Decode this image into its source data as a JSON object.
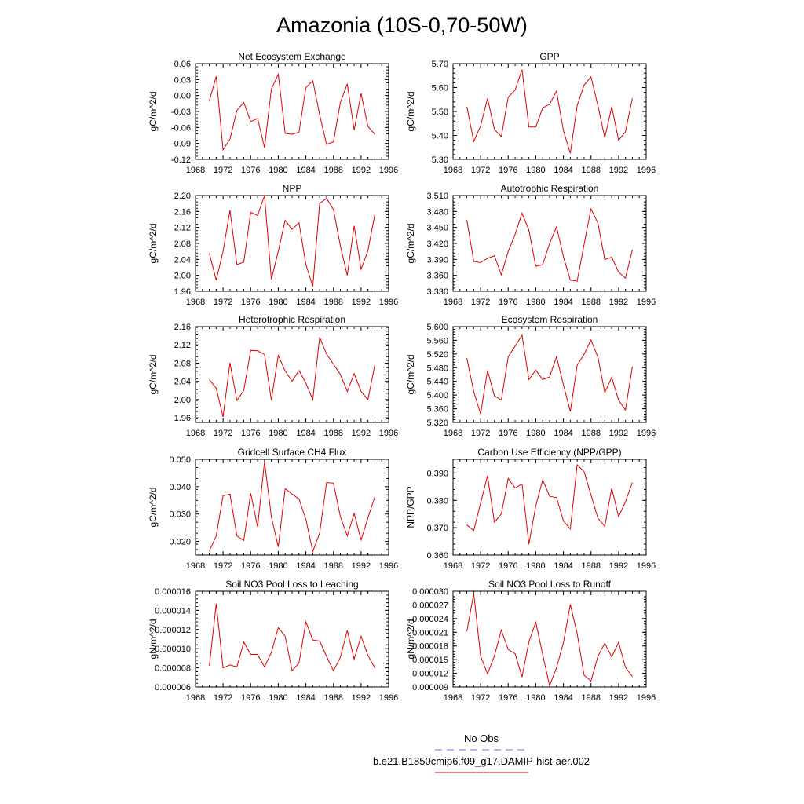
{
  "title": "Amazonia (10S-0,70-50W)",
  "legend": {
    "header": "No Obs",
    "obs_color": "#6e6ee6",
    "model_label": "b.e21.B1850cmip6.f09_g17.DAMIP-hist-aer.002",
    "model_color": "#e00000"
  },
  "years": [
    1970,
    1971,
    1972,
    1973,
    1974,
    1975,
    1976,
    1977,
    1978,
    1979,
    1980,
    1981,
    1982,
    1983,
    1984,
    1985,
    1986,
    1987,
    1988,
    1989,
    1990,
    1991,
    1992,
    1993,
    1994
  ],
  "x_ticks": [
    "1968",
    "1972",
    "1976",
    "1980",
    "1984",
    "1988",
    "1992",
    "1996"
  ],
  "chart_data": [
    {
      "type": "line",
      "title": "Net Ecosystem Exchange",
      "ylabel": "gC/m^2/d",
      "xlim": [
        1968,
        1996
      ],
      "ylim": [
        -0.12,
        0.06
      ],
      "yticks": [
        "0.06",
        "0.03",
        "0.00",
        "-0.03",
        "-0.06",
        "-0.09",
        "-0.12"
      ],
      "series": [
        {
          "values": [
            -0.01,
            0.036,
            -0.102,
            -0.082,
            -0.028,
            -0.013,
            -0.049,
            -0.043,
            -0.098,
            0.012,
            0.04,
            -0.071,
            -0.073,
            -0.069,
            0.015,
            0.028,
            -0.036,
            -0.092,
            -0.087,
            -0.013,
            0.022,
            -0.065,
            0.004,
            -0.058,
            -0.073
          ]
        }
      ]
    },
    {
      "type": "line",
      "title": "GPP",
      "ylabel": "gC/m^2/d",
      "xlim": [
        1968,
        1996
      ],
      "ylim": [
        5.3,
        5.7
      ],
      "yticks": [
        "5.70",
        "5.60",
        "5.50",
        "5.40",
        "5.30"
      ],
      "series": [
        {
          "values": [
            5.52,
            5.375,
            5.44,
            5.555,
            5.425,
            5.395,
            5.56,
            5.59,
            5.675,
            5.435,
            5.435,
            5.515,
            5.53,
            5.585,
            5.42,
            5.325,
            5.525,
            5.61,
            5.645,
            5.525,
            5.39,
            5.52,
            5.38,
            5.415,
            5.555
          ]
        }
      ]
    },
    {
      "type": "line",
      "title": "NPP",
      "ylabel": "gC/m^2/d",
      "xlim": [
        1968,
        1996
      ],
      "ylim": [
        1.96,
        2.2
      ],
      "yticks": [
        "2.20",
        "2.16",
        "2.12",
        "2.08",
        "2.04",
        "2.00",
        "1.96"
      ],
      "series": [
        {
          "values": [
            2.055,
            1.988,
            2.06,
            2.163,
            2.027,
            2.033,
            2.158,
            2.15,
            2.2,
            1.99,
            2.06,
            2.138,
            2.115,
            2.132,
            2.027,
            1.972,
            2.18,
            2.193,
            2.165,
            2.074,
            2.0,
            2.124,
            2.015,
            2.062,
            2.152
          ]
        }
      ]
    },
    {
      "type": "line",
      "title": "Autotrophic Respiration",
      "ylabel": "gC/m^2/d",
      "xlim": [
        1968,
        1996
      ],
      "ylim": [
        3.33,
        3.51
      ],
      "yticks": [
        "3.510",
        "3.480",
        "3.450",
        "3.420",
        "3.390",
        "3.360",
        "3.330"
      ],
      "series": [
        {
          "values": [
            3.464,
            3.386,
            3.384,
            3.392,
            3.397,
            3.361,
            3.405,
            3.437,
            3.477,
            3.445,
            3.377,
            3.38,
            3.42,
            3.451,
            3.395,
            3.351,
            3.349,
            3.418,
            3.485,
            3.458,
            3.39,
            3.394,
            3.366,
            3.355,
            3.408
          ]
        }
      ]
    },
    {
      "type": "line",
      "title": "Heterotrophic Respiration",
      "ylabel": "gC/m^2/d",
      "xlim": [
        1968,
        1996
      ],
      "ylim": [
        1.95,
        2.16
      ],
      "yticks": [
        "2.16",
        "2.12",
        "2.08",
        "2.04",
        "2.00",
        "1.96"
      ],
      "series": [
        {
          "values": [
            2.044,
            2.025,
            1.962,
            2.081,
            1.998,
            2.02,
            2.108,
            2.107,
            2.099,
            1.999,
            2.097,
            2.063,
            2.04,
            2.064,
            2.036,
            2.0,
            2.137,
            2.1,
            2.078,
            2.055,
            2.018,
            2.057,
            2.018,
            2.0,
            2.076
          ]
        }
      ]
    },
    {
      "type": "line",
      "title": "Ecosystem Respiration",
      "ylabel": "gC/m^2/d",
      "xlim": [
        1968,
        1996
      ],
      "ylim": [
        5.32,
        5.6
      ],
      "yticks": [
        "5.600",
        "5.560",
        "5.520",
        "5.480",
        "5.440",
        "5.400",
        "5.360",
        "5.320"
      ],
      "series": [
        {
          "values": [
            5.508,
            5.41,
            5.345,
            5.472,
            5.398,
            5.385,
            5.512,
            5.543,
            5.575,
            5.445,
            5.473,
            5.445,
            5.453,
            5.512,
            5.43,
            5.352,
            5.487,
            5.519,
            5.561,
            5.511,
            5.407,
            5.452,
            5.385,
            5.356,
            5.483
          ]
        }
      ]
    },
    {
      "type": "line",
      "title": "Gridcell Surface CH4 Flux",
      "ylabel": "gC/m^2/d",
      "xlim": [
        1968,
        1996
      ],
      "ylim": [
        0.015,
        0.05
      ],
      "yticks": [
        "0.050",
        "0.040",
        "0.030",
        "0.020"
      ],
      "series": [
        {
          "values": [
            0.0165,
            0.022,
            0.0367,
            0.0373,
            0.022,
            0.0203,
            0.0376,
            0.0253,
            0.0491,
            0.029,
            0.018,
            0.0393,
            0.0373,
            0.0355,
            0.028,
            0.0163,
            0.023,
            0.0415,
            0.0413,
            0.0291,
            0.022,
            0.0302,
            0.0205,
            0.0286,
            0.0363
          ]
        }
      ]
    },
    {
      "type": "line",
      "title": "Carbon Use Efficiency (NPP/GPP)",
      "ylabel": "NPP/GPP",
      "xlim": [
        1968,
        1996
      ],
      "ylim": [
        0.36,
        0.395
      ],
      "yticks": [
        "0.390",
        "0.380",
        "0.370",
        "0.360"
      ],
      "series": [
        {
          "values": [
            0.371,
            0.369,
            0.379,
            0.389,
            0.372,
            0.375,
            0.388,
            0.3845,
            0.386,
            0.364,
            0.378,
            0.3875,
            0.3815,
            0.381,
            0.3725,
            0.3695,
            0.393,
            0.3905,
            0.382,
            0.3735,
            0.3705,
            0.3845,
            0.374,
            0.3795,
            0.3865
          ]
        }
      ]
    },
    {
      "type": "line",
      "title": "Soil NO3 Pool Loss to Leaching",
      "ylabel": "gN/m^2/d",
      "xlim": [
        1968,
        1996
      ],
      "ylim": [
        6e-06,
        1.6e-05
      ],
      "yticks": [
        "0.000016",
        "0.000014",
        "0.000012",
        "0.000010",
        "0.000008",
        "0.000006"
      ],
      "series": [
        {
          "values": [
            8.2e-06,
            1.47e-05,
            8e-06,
            8.3e-06,
            8.1e-06,
            1.07e-05,
            9.4e-06,
            9.4e-06,
            8.1e-06,
            9.6e-06,
            1.22e-05,
            1.13e-05,
            7.7e-06,
            8.5e-06,
            1.28e-05,
            1.09e-05,
            1.08e-05,
            9.2e-06,
            7.7e-06,
            9.1e-06,
            1.19e-05,
            8.9e-06,
            1.13e-05,
            9.3e-06,
            8e-06
          ]
        }
      ]
    },
    {
      "type": "line",
      "title": "Soil NO3 Pool Loss to Runoff",
      "ylabel": "gN/m^2/d",
      "xlim": [
        1968,
        1996
      ],
      "ylim": [
        9e-06,
        3e-05
      ],
      "yticks": [
        "0.000030",
        "0.000027",
        "0.000024",
        "0.000021",
        "0.000018",
        "0.000015",
        "0.000012",
        "0.000009"
      ],
      "series": [
        {
          "values": [
            2.12e-05,
            2.95e-05,
            1.58e-05,
            1.19e-05,
            1.58e-05,
            2.15e-05,
            1.72e-05,
            1.63e-05,
            1.12e-05,
            1.89e-05,
            2.32e-05,
            1.61e-05,
            9.3e-06,
            1.32e-05,
            1.87e-05,
            2.71e-05,
            2.07e-05,
            1.16e-05,
            1.03e-05,
            1.57e-05,
            1.86e-05,
            1.56e-05,
            1.88e-05,
            1.33e-05,
            1.13e-05
          ]
        }
      ]
    }
  ]
}
